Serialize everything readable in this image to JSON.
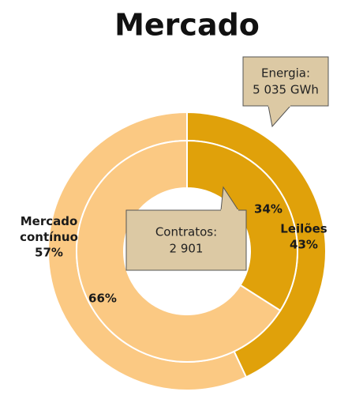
{
  "chart_data": {
    "type": "donut",
    "title": "Mercado",
    "categories": [
      "Leilões",
      "Mercado contínuo"
    ],
    "colors": [
      "#e0a10a",
      "#fbc983"
    ],
    "series": [
      {
        "values": [
          43,
          57
        ],
        "value_labels": [
          "43%",
          "57%"
        ]
      },
      {
        "values": [
          34,
          66
        ],
        "value_labels": [
          "34%",
          "66%"
        ]
      }
    ],
    "annotations": [
      {
        "title": "Energia:",
        "text": "5 035 GWh"
      },
      {
        "title": "Contratos:",
        "text": "2 901"
      }
    ]
  }
}
